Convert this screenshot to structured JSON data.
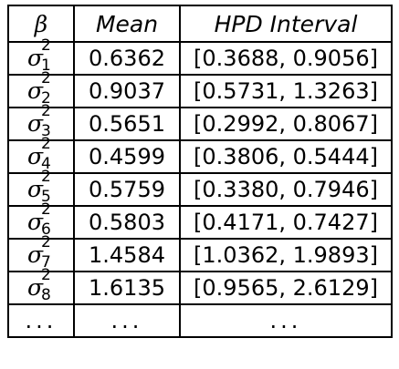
{
  "table": {
    "headers": [
      "β",
      "Mean",
      "HPD Interval"
    ],
    "rows": [
      {
        "symbol": "σ",
        "superscript": "2",
        "subscript": "1",
        "mean": "0.6362",
        "interval": "[0.3688, 0.9056]"
      },
      {
        "symbol": "σ",
        "superscript": "2",
        "subscript": "2",
        "mean": "0.9037",
        "interval": "[0.5731, 1.3263]"
      },
      {
        "symbol": "σ",
        "superscript": "2",
        "subscript": "3",
        "mean": "0.5651",
        "interval": "[0.2992, 0.8067]"
      },
      {
        "symbol": "σ",
        "superscript": "2",
        "subscript": "4",
        "mean": "0.4599",
        "interval": "[0.3806, 0.5444]"
      },
      {
        "symbol": "σ",
        "superscript": "2",
        "subscript": "5",
        "mean": "0.5759",
        "interval": "[0.3380, 0.7946]"
      },
      {
        "symbol": "σ",
        "superscript": "2",
        "subscript": "6",
        "mean": "0.5803",
        "interval": "[0.4171, 0.7427]"
      },
      {
        "symbol": "σ",
        "superscript": "2",
        "subscript": "7",
        "mean": "1.4584",
        "interval": "[1.0362, 1.9893]"
      },
      {
        "symbol": "σ",
        "superscript": "2",
        "subscript": "8",
        "mean": "1.6135",
        "interval": "[0.9565, 2.6129]"
      }
    ],
    "ellipsis_row": [
      "...",
      "...",
      "..."
    ]
  }
}
